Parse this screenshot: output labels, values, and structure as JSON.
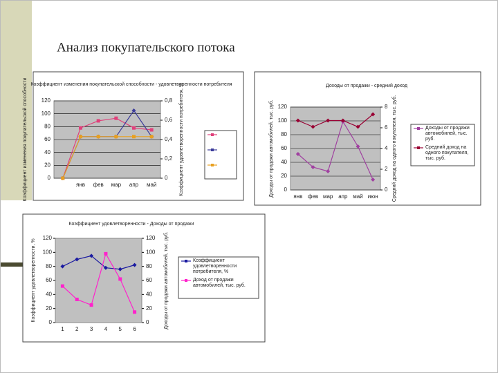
{
  "title": "Анализ покупательского потока",
  "chart_data": [
    {
      "type": "line",
      "title": "Коэффициент изменения покупательской способности - удовлетворенности потребителя",
      "ylabel": "Коэффициент изменения покупательской способности",
      "y2label": "Коэффициент удовлетворенности потребителя, %",
      "categories": [
        null,
        "янв",
        "фев",
        "мар",
        "апр",
        "май"
      ],
      "ylim": [
        0,
        120
      ],
      "yticks": [
        0,
        20,
        40,
        60,
        80,
        100,
        120
      ],
      "y2lim": [
        0,
        0.8
      ],
      "y2ticks": [
        0,
        {
          "value": 0.2,
          "label": "0,2"
        },
        {
          "value": 0.4,
          "label": "0,4"
        },
        {
          "value": 0.6,
          "label": "0,6"
        },
        {
          "value": 0.8,
          "label": "0,8"
        }
      ],
      "grid": true,
      "legend": "right",
      "series": [
        {
          "color": "#e0407a",
          "marker": "square",
          "values": [
            0,
            78,
            89,
            93,
            78,
            75
          ]
        },
        {
          "color": "#3b3b9a",
          "marker": "diamond",
          "axis": "y2",
          "values": [
            0,
            0.43,
            0.43,
            0.43,
            0.7,
            0.43
          ]
        },
        {
          "color": "#e8a020",
          "marker": "square",
          "axis": "y2",
          "values": [
            0,
            0.43,
            0.43,
            0.43,
            0.43,
            0.43
          ]
        }
      ]
    },
    {
      "type": "line",
      "title": "Доходы от продажи - средний доход",
      "ylabel": "Доходы от продажи автомобилей, тыс. руб.",
      "y2label": "Средний доход на одного покупателя, тыс. руб.",
      "categories": [
        "янв",
        "фев",
        "мар",
        "апр",
        "май",
        "июн"
      ],
      "ylim": [
        0,
        120
      ],
      "yticks": [
        0,
        20,
        40,
        60,
        80,
        100,
        120
      ],
      "y2lim": [
        0,
        8
      ],
      "y2ticks": [
        0,
        2,
        4,
        6,
        8
      ],
      "grid": true,
      "legend": "right",
      "series": [
        {
          "name": "Доходы от продажи автомобилей, тыс. руб.",
          "color": "#a040a0",
          "marker": "diamond",
          "values": [
            52,
            33,
            27,
            99,
            63,
            15
          ]
        },
        {
          "name": "Средний доход на одного покупателя, тыс. руб.",
          "color": "#990033",
          "marker": "diamond",
          "axis": "y2",
          "values": [
            6.7,
            6.1,
            6.7,
            6.7,
            6.1,
            7.3
          ]
        }
      ]
    },
    {
      "type": "line",
      "title": "Коэффициент удовлетворенности - Доходы от продажи",
      "ylabel": "Коэффициент удовлетворенности, %",
      "y2label": "Доходы от продажи автомобилей, тыс. руб.",
      "categories": [
        "1",
        "2",
        "3",
        "4",
        "5",
        "6"
      ],
      "ylim": [
        0,
        120
      ],
      "yticks": [
        0,
        20,
        40,
        60,
        80,
        100,
        120
      ],
      "y2lim": [
        0,
        120
      ],
      "y2ticks": [
        0,
        20,
        40,
        60,
        80,
        100,
        120
      ],
      "grid": false,
      "legend": "right",
      "series": [
        {
          "name": "Коэффициент удовлетворенности потребителя, %",
          "color": "#1a1aa0",
          "marker": "diamond",
          "values": [
            80,
            90,
            95,
            78,
            76,
            82
          ]
        },
        {
          "name": "Доход от продажи автомобилей, тыс. руб.",
          "color": "#ff22cc",
          "marker": "square",
          "axis": "y2",
          "values": [
            52,
            33,
            25,
            98,
            62,
            15
          ]
        }
      ]
    }
  ]
}
